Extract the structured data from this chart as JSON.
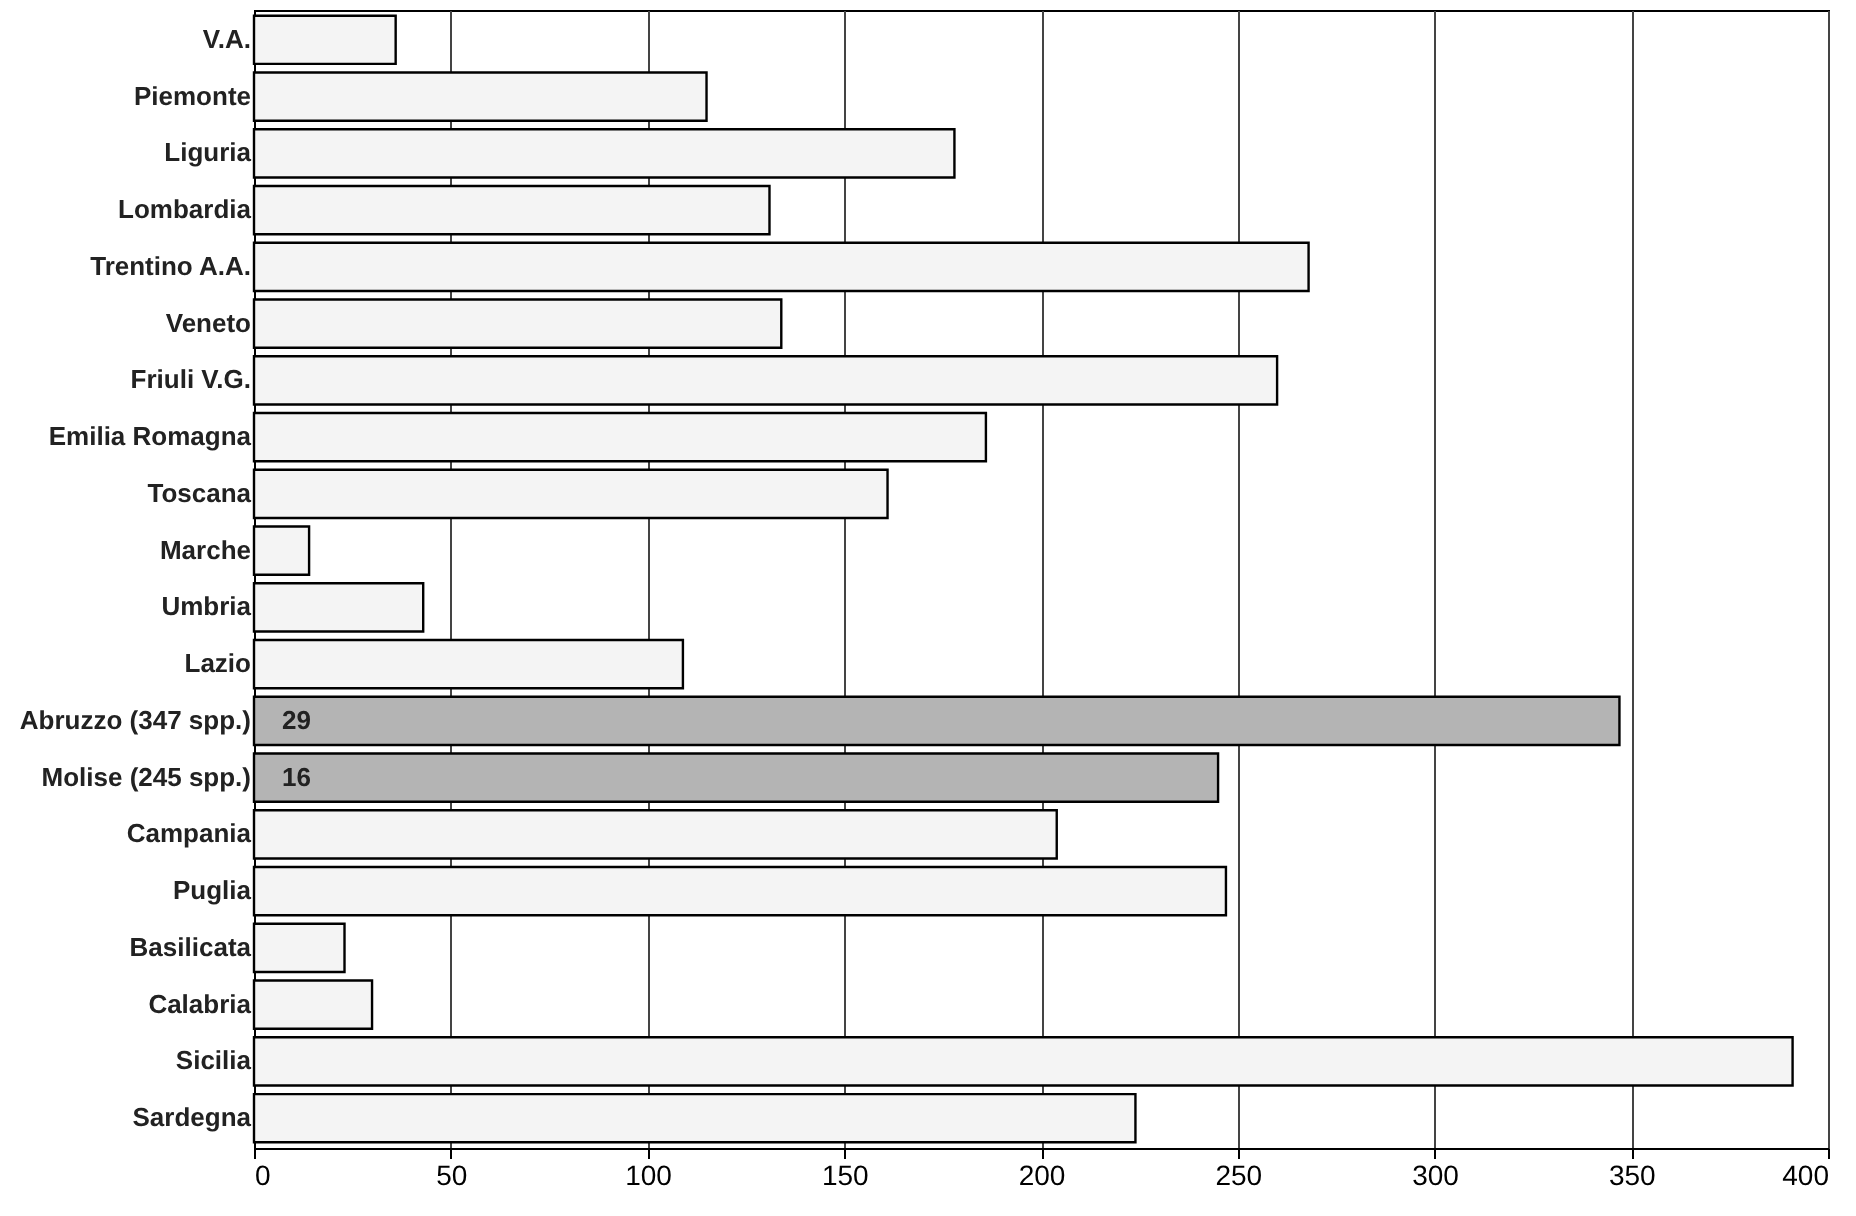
{
  "chart_data": {
    "type": "bar",
    "orientation": "horizontal",
    "categories": [
      "V.A.",
      "Piemonte",
      "Liguria",
      "Lombardia",
      "Trentino A.A.",
      "Veneto",
      "Friuli V.G.",
      "Emilia Romagna",
      "Toscana",
      "Marche",
      "Umbria",
      "Lazio",
      "Abruzzo  (347 spp.)",
      "Molise  (245 spp.)",
      "Campania",
      "Puglia",
      "Basilicata",
      "Calabria",
      "Sicilia",
      "Sardegna"
    ],
    "values": [
      36,
      115,
      178,
      131,
      268,
      134,
      260,
      186,
      161,
      14,
      43,
      109,
      347,
      245,
      204,
      247,
      23,
      30,
      391,
      224
    ],
    "colors": [
      "#f4f4f4",
      "#f4f4f4",
      "#f4f4f4",
      "#f4f4f4",
      "#f4f4f4",
      "#f4f4f4",
      "#f4f4f4",
      "#f4f4f4",
      "#f4f4f4",
      "#f4f4f4",
      "#f4f4f4",
      "#f4f4f4",
      "#b4b4b4",
      "#b4b4b4",
      "#f4f4f4",
      "#f4f4f4",
      "#f4f4f4",
      "#f4f4f4",
      "#f4f4f4",
      "#f4f4f4"
    ],
    "xlim": [
      0,
      400
    ],
    "xticks": [
      0,
      50,
      100,
      150,
      200,
      250,
      300,
      350,
      400
    ],
    "grid": "x",
    "annotations": [
      {
        "text": "29",
        "y": "Abruzzo  (347 spp.)"
      },
      {
        "text": "16",
        "y": "Molise  (245 spp.)"
      }
    ]
  }
}
